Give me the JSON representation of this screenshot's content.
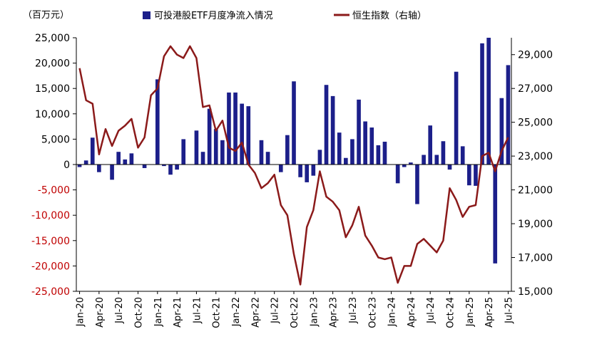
{
  "chart_data": {
    "type": "bar+line",
    "unit_label": "（百万元）",
    "x": [
      "Jan-20",
      "Feb-20",
      "Mar-20",
      "Apr-20",
      "May-20",
      "Jun-20",
      "Jul-20",
      "Aug-20",
      "Sep-20",
      "Oct-20",
      "Nov-20",
      "Dec-20",
      "Jan-21",
      "Feb-21",
      "Mar-21",
      "Apr-21",
      "May-21",
      "Jun-21",
      "Jul-21",
      "Aug-21",
      "Sep-21",
      "Oct-21",
      "Nov-21",
      "Dec-21",
      "Jan-22",
      "Feb-22",
      "Mar-22",
      "Apr-22",
      "May-22",
      "Jun-22",
      "Jul-22",
      "Aug-22",
      "Sep-22",
      "Oct-22",
      "Nov-22",
      "Dec-22",
      "Jan-23",
      "Feb-23",
      "Mar-23",
      "Apr-23",
      "May-23",
      "Jun-23",
      "Jul-23",
      "Aug-23",
      "Sep-23",
      "Oct-23",
      "Nov-23",
      "Dec-23",
      "Jan-24",
      "Feb-24",
      "Mar-24",
      "Apr-24",
      "May-24",
      "Jun-24",
      "Jul-24",
      "Aug-24",
      "Sep-24",
      "Oct-24",
      "Nov-24",
      "Dec-24",
      "Jan-25",
      "Feb-25",
      "Mar-25",
      "Apr-25",
      "May-25",
      "Jun-25",
      "Jul-25"
    ],
    "x_tick_labels": [
      "Jan-20",
      "Apr-20",
      "Jul-20",
      "Oct-20",
      "Jan-21",
      "Apr-21",
      "Jul-21",
      "Oct-21",
      "Jan-22",
      "Apr-22",
      "Jul-22",
      "Oct-22",
      "Jan-23",
      "Apr-23",
      "Jul-23",
      "Oct-23",
      "Jan-24",
      "Apr-24",
      "Jul-24",
      "Oct-24",
      "Jan-25",
      "Apr-25",
      "Jul-25"
    ],
    "series": [
      {
        "name": "可投港股ETF月度净流入情况",
        "kind": "bar",
        "axis": "left",
        "color": "#1c1f8a",
        "values": [
          -500,
          800,
          5300,
          -1500,
          0,
          -3000,
          2500,
          1000,
          2200,
          0,
          -700,
          0,
          16800,
          -300,
          -2000,
          -1000,
          5000,
          0,
          6700,
          2500,
          11000,
          7000,
          4800,
          14200,
          14200,
          12000,
          11500,
          0,
          4800,
          2500,
          0,
          -1500,
          5800,
          16400,
          -2500,
          -3500,
          -2200,
          2900,
          15700,
          13500,
          6300,
          1300,
          5000,
          12800,
          8500,
          7300,
          3800,
          4500,
          0,
          -3700,
          -500,
          400,
          -7800,
          1900,
          7700,
          1900,
          4600,
          -1000,
          18300,
          3600,
          -4100,
          -4200,
          23900,
          25000,
          -19500,
          13100,
          19600
        ]
      },
      {
        "name": "恒生指数（右轴）",
        "kind": "line",
        "axis": "right",
        "color": "#8b1a1a",
        "values": [
          28200,
          26300,
          26100,
          23100,
          24600,
          23600,
          24500,
          24800,
          25200,
          23500,
          24100,
          26600,
          27000,
          28900,
          29500,
          29000,
          28800,
          29500,
          28800,
          25900,
          26000,
          24500,
          25100,
          23500,
          23300,
          23800,
          22500,
          22000,
          21100,
          21400,
          21900,
          20100,
          19500,
          17200,
          15400,
          18800,
          19800,
          22100,
          20600,
          20300,
          19800,
          18200,
          18900,
          20000,
          18300,
          17700,
          17000,
          16900,
          17000,
          15500,
          16500,
          16500,
          17800,
          18100,
          17700,
          17300,
          18000,
          21100,
          20400,
          19400,
          20000,
          20100,
          23000,
          23200,
          22100,
          23300,
          24100
        ]
      }
    ],
    "y_left": {
      "min": -25000,
      "max": 25000,
      "step": 5000,
      "tick_labels": [
        "25,000",
        "20,000",
        "15,000",
        "10,000",
        "5,000",
        "0",
        "-5,000",
        "-10,000",
        "-15,000",
        "-20,000",
        "-25,000"
      ]
    },
    "y_right": {
      "min": 15000,
      "max": 30000,
      "step": 2000,
      "tick_labels": [
        "29,000",
        "27,000",
        "25,000",
        "23,000",
        "21,000",
        "19,000",
        "17,000",
        "15,000"
      ]
    },
    "colors": {
      "left_axis_labels": "#c00000",
      "positive_labels": "#000000",
      "bar": "#1c1f8a",
      "line": "#8b1a1a"
    },
    "grid": false,
    "legend_position": "top"
  }
}
